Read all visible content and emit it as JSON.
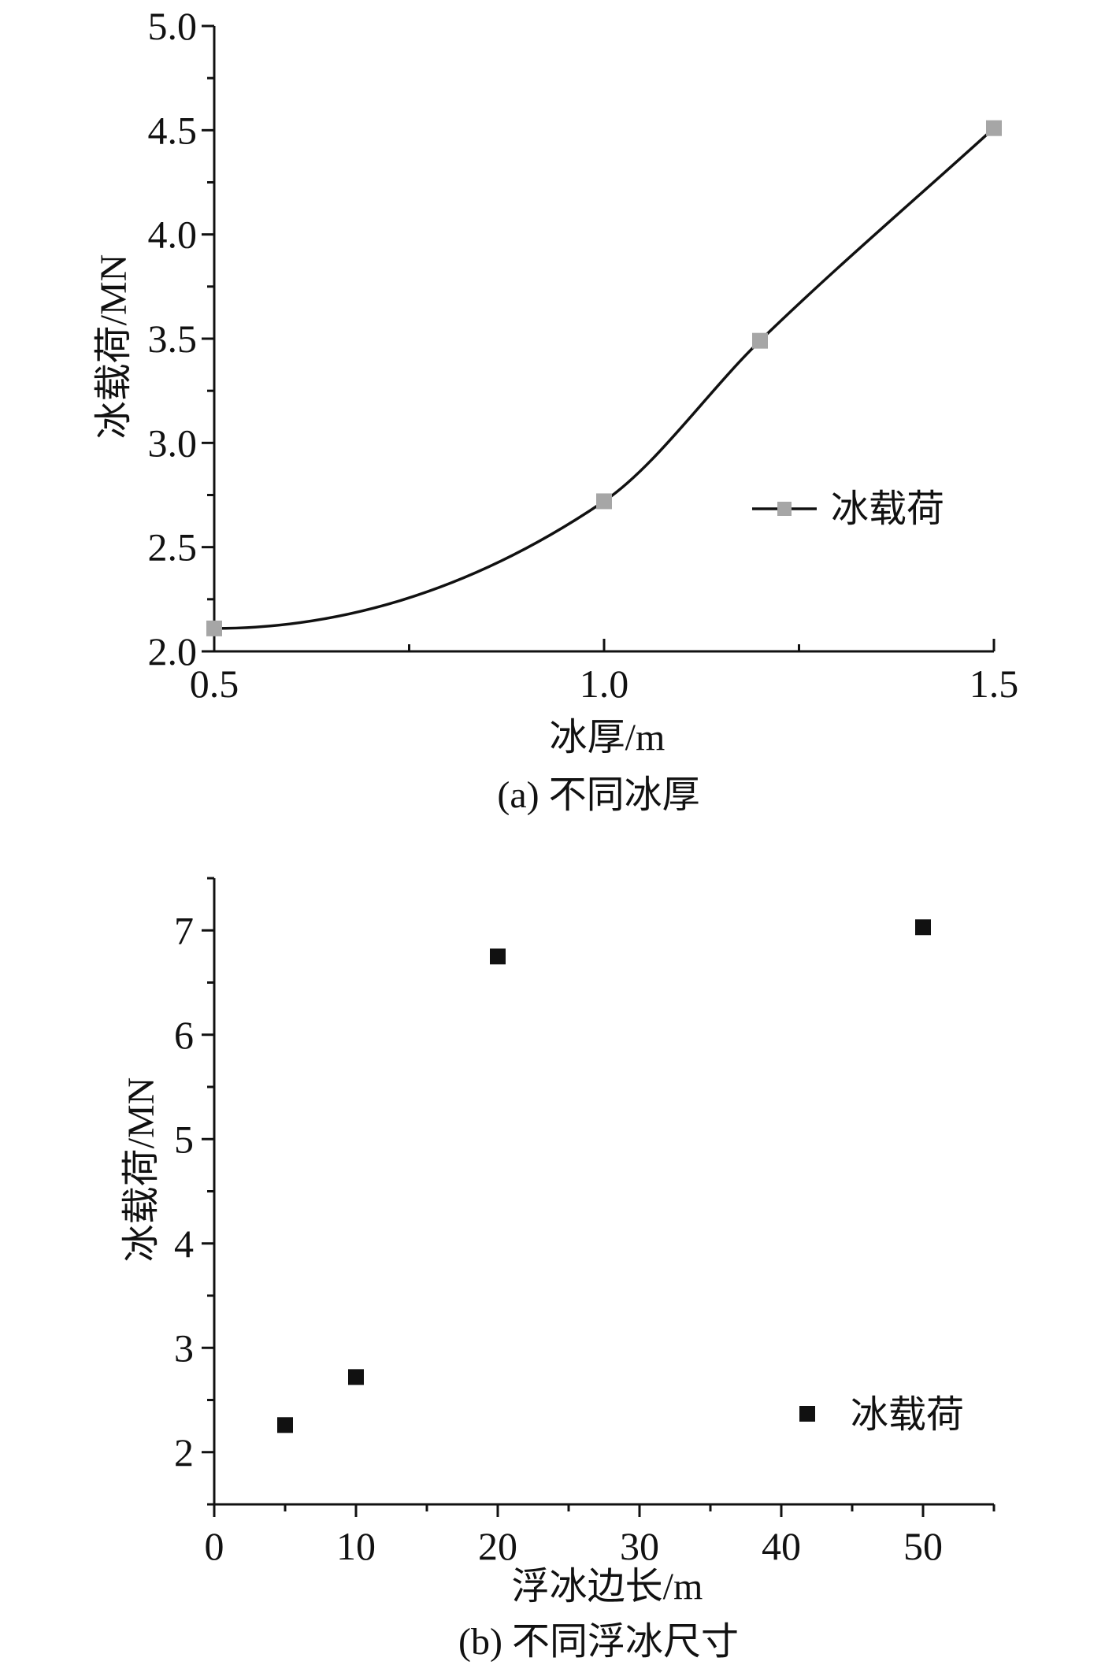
{
  "chart_data": [
    {
      "type": "line",
      "panel": "a",
      "xlabel": "冰厚/m",
      "ylabel": "冰载荷/MN",
      "caption": "(a) 不同冰厚",
      "xlim": [
        0.5,
        1.5
      ],
      "ylim": [
        2.0,
        5.0
      ],
      "x_major_ticks": [
        0.5,
        1.0,
        1.5
      ],
      "x_tick_labels": [
        "0.5",
        "1.0",
        "1.5"
      ],
      "y_major_ticks": [
        2.0,
        2.5,
        3.0,
        3.5,
        4.0,
        4.5,
        5.0
      ],
      "y_tick_labels": [
        "2.0",
        "2.5",
        "3.0",
        "3.5",
        "4.0",
        "4.5",
        "5.0"
      ],
      "grid": false,
      "legend_position": "right",
      "series": [
        {
          "name": "冰载荷",
          "x": [
            0.5,
            1.0,
            1.2,
            1.5
          ],
          "y": [
            2.11,
            2.72,
            3.49,
            4.51
          ],
          "line_color": "#111111",
          "marker": "square",
          "marker_color": "#a6a6a6",
          "smooth": true
        }
      ]
    },
    {
      "type": "scatter",
      "panel": "b",
      "xlabel": "浮冰边长/m",
      "ylabel": "冰载荷/MN",
      "caption": "(b) 不同浮冰尺寸",
      "xlim": [
        0,
        55
      ],
      "ylim": [
        1.5,
        7.5
      ],
      "x_major_ticks": [
        0,
        10,
        20,
        30,
        40,
        50
      ],
      "x_tick_labels": [
        "0",
        "10",
        "20",
        "30",
        "40",
        "50"
      ],
      "y_major_ticks": [
        2,
        3,
        4,
        5,
        6,
        7
      ],
      "y_tick_labels": [
        "2",
        "3",
        "4",
        "5",
        "6",
        "7"
      ],
      "grid": false,
      "legend_position": "bottom-right",
      "series": [
        {
          "name": "冰载荷",
          "x": [
            5,
            10,
            20,
            50
          ],
          "y": [
            2.26,
            2.72,
            6.75,
            7.03
          ],
          "marker": "square",
          "marker_color": "#111111"
        }
      ]
    }
  ]
}
